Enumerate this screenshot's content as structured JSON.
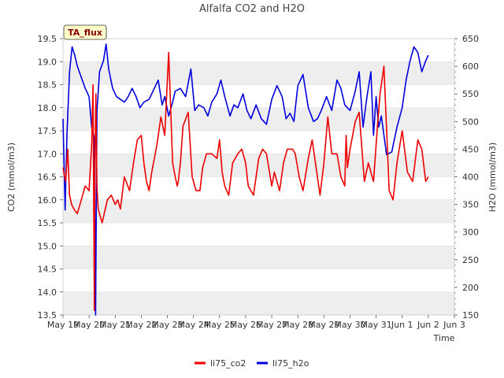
{
  "chart_data": {
    "type": "line",
    "title": "Alfalfa CO2 and H2O",
    "badge": "TA_flux",
    "xlabel": "Time",
    "ylabel_left": "CO2 (mmol/m3)",
    "ylabel_right": "H2O (mmol/m3)",
    "x_ticks": [
      "May 19",
      "May 20",
      "May 21",
      "May 22",
      "May 23",
      "May 24",
      "May 25",
      "May 26",
      "May 27",
      "May 28",
      "May 29",
      "May 30",
      "May 31",
      "Jun 1",
      "Jun 2",
      "Jun 3"
    ],
    "xlim": [
      0,
      15
    ],
    "ylim_left": [
      13.5,
      19.5
    ],
    "y_ticks_left": [
      13.5,
      14.0,
      14.5,
      15.0,
      15.5,
      16.0,
      16.5,
      17.0,
      17.5,
      18.0,
      18.5,
      19.0,
      19.5
    ],
    "ylim_right": [
      150,
      650
    ],
    "y_ticks_right": [
      150,
      200,
      250,
      300,
      350,
      400,
      450,
      500,
      550,
      600,
      650
    ],
    "grid": true,
    "legend_position": "bottom",
    "colors": {
      "li75_co2": "#ee0000",
      "li75_h2o": "#0000dd",
      "band": "#eeeeee",
      "badge_fill": "#ffffcc"
    },
    "series": [
      {
        "name": "li75_co2",
        "axis": "left",
        "x": [
          0.0,
          0.1,
          0.18,
          0.25,
          0.33,
          0.42,
          0.55,
          0.7,
          0.85,
          1.0,
          1.1,
          1.15,
          1.2,
          1.22,
          1.26,
          1.3,
          1.35,
          1.5,
          1.7,
          1.85,
          2.0,
          2.1,
          2.2,
          2.35,
          2.55,
          2.7,
          2.85,
          3.0,
          3.1,
          3.2,
          3.3,
          3.4,
          3.6,
          3.75,
          3.9,
          4.05,
          4.2,
          4.3,
          4.38,
          4.42,
          4.5,
          4.6,
          4.8,
          4.95,
          5.1,
          5.25,
          5.35,
          5.5,
          5.7,
          5.9,
          6.0,
          6.1,
          6.2,
          6.35,
          6.5,
          6.7,
          6.85,
          7.0,
          7.1,
          7.3,
          7.5,
          7.65,
          7.8,
          8.0,
          8.1,
          8.3,
          8.45,
          8.6,
          8.8,
          8.9,
          9.05,
          9.2,
          9.4,
          9.55,
          9.7,
          9.85,
          10.0,
          10.15,
          10.3,
          10.5,
          10.65,
          10.8,
          10.85,
          10.9,
          11.0,
          11.2,
          11.35,
          11.55,
          11.7,
          11.9,
          12.05,
          12.15,
          12.3,
          12.5,
          12.65,
          12.8,
          13.0,
          13.2,
          13.4,
          13.6,
          13.75,
          13.9,
          14.0
        ],
        "y": [
          16.7,
          16.4,
          17.1,
          16.1,
          15.9,
          15.8,
          15.7,
          16.0,
          16.3,
          16.2,
          17.2,
          18.5,
          13.6,
          16.5,
          18.3,
          16.3,
          15.8,
          15.5,
          16.0,
          16.1,
          15.9,
          16.0,
          15.8,
          16.5,
          16.2,
          16.8,
          17.3,
          17.4,
          16.8,
          16.4,
          16.2,
          16.6,
          17.2,
          17.8,
          17.4,
          19.2,
          16.8,
          16.5,
          16.3,
          16.4,
          16.8,
          17.6,
          17.9,
          16.5,
          16.2,
          16.2,
          16.7,
          17.0,
          17.0,
          16.9,
          17.3,
          16.6,
          16.3,
          16.1,
          16.8,
          17.0,
          17.1,
          16.8,
          16.3,
          16.1,
          16.9,
          17.1,
          17.0,
          16.3,
          16.6,
          16.2,
          16.8,
          17.1,
          17.1,
          17.0,
          16.5,
          16.2,
          16.9,
          17.3,
          16.7,
          16.1,
          16.8,
          17.8,
          17.0,
          17.0,
          16.5,
          16.3,
          17.4,
          16.7,
          17.1,
          17.7,
          17.9,
          16.4,
          16.8,
          16.4,
          17.6,
          18.3,
          18.9,
          16.2,
          16.0,
          16.8,
          17.5,
          16.6,
          16.4,
          17.3,
          17.1,
          16.4,
          16.5
        ]
      },
      {
        "name": "li75_h2o",
        "axis": "right",
        "x": [
          0.0,
          0.08,
          0.15,
          0.25,
          0.35,
          0.45,
          0.55,
          0.7,
          0.85,
          1.0,
          1.1,
          1.2,
          1.25,
          1.3,
          1.4,
          1.55,
          1.65,
          1.75,
          1.9,
          2.05,
          2.2,
          2.35,
          2.5,
          2.65,
          2.8,
          2.95,
          3.1,
          3.3,
          3.5,
          3.65,
          3.8,
          3.9,
          4.05,
          4.2,
          4.3,
          4.5,
          4.7,
          4.9,
          5.05,
          5.2,
          5.4,
          5.55,
          5.7,
          5.9,
          6.05,
          6.2,
          6.4,
          6.55,
          6.7,
          6.9,
          7.05,
          7.2,
          7.4,
          7.6,
          7.8,
          8.0,
          8.2,
          8.4,
          8.55,
          8.7,
          8.85,
          9.0,
          9.2,
          9.4,
          9.6,
          9.75,
          9.9,
          10.1,
          10.3,
          10.5,
          10.65,
          10.8,
          11.0,
          11.2,
          11.35,
          11.5,
          11.65,
          11.8,
          11.9,
          12.0,
          12.1,
          12.2,
          12.4,
          12.6,
          12.8,
          13.0,
          13.15,
          13.3,
          13.45,
          13.6,
          13.75,
          13.9,
          14.0
        ],
        "y": [
          505,
          340,
          475,
          590,
          635,
          620,
          600,
          580,
          560,
          545,
          490,
          470,
          150,
          520,
          590,
          610,
          640,
          595,
          560,
          545,
          540,
          535,
          545,
          560,
          545,
          525,
          535,
          540,
          560,
          575,
          530,
          545,
          510,
          535,
          555,
          560,
          545,
          595,
          520,
          530,
          525,
          510,
          535,
          550,
          575,
          545,
          510,
          530,
          525,
          550,
          520,
          505,
          530,
          505,
          495,
          540,
          565,
          545,
          505,
          515,
          500,
          565,
          585,
          525,
          500,
          505,
          520,
          545,
          520,
          575,
          560,
          530,
          520,
          555,
          590,
          490,
          545,
          590,
          475,
          545,
          490,
          510,
          440,
          445,
          490,
          525,
          575,
          610,
          635,
          625,
          590,
          610,
          620
        ]
      }
    ]
  },
  "legend": [
    {
      "label": "li75_co2",
      "color": "#ee0000"
    },
    {
      "label": "li75_h2o",
      "color": "#0000dd"
    }
  ]
}
